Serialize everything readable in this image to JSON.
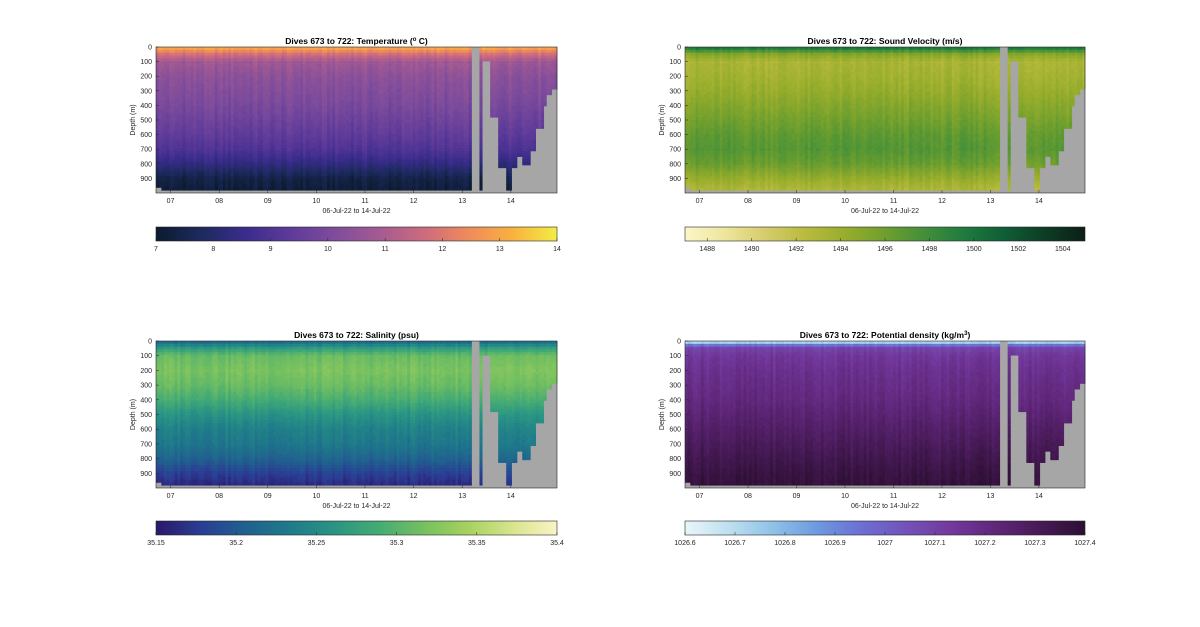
{
  "figure": {
    "panels": [
      {
        "title": "Dives 673 to 722: Temperature",
        "title_units": "(",
        "title_unit_sup": "o",
        "title_unit_rest": " C)",
        "colormap": [
          "#0b1b2e",
          "#1c2a5e",
          "#3b2c8c",
          "#5d3a99",
          "#7e4c9c",
          "#a45a92",
          "#cc6a7f",
          "#ef8a5c",
          "#f9b13f",
          "#f2ee45"
        ],
        "colorbar_ticks": [
          "7",
          "8",
          "9",
          "10",
          "11",
          "12",
          "13",
          "14"
        ]
      },
      {
        "title": "Dives 673 to 722: Sound Velocity (m/s)",
        "title_units": "",
        "title_unit_sup": "",
        "title_unit_rest": "",
        "colormap": [
          "#fcf6c8",
          "#eee59c",
          "#d6cc6c",
          "#b9bb3e",
          "#98ad2c",
          "#6f9f2e",
          "#428f3a",
          "#1e7a3e",
          "#105d35",
          "#0c3d25",
          "#0b1f16"
        ],
        "colorbar_ticks": [
          "1488",
          "1490",
          "1492",
          "1494",
          "1496",
          "1498",
          "1500",
          "1502",
          "1504"
        ]
      },
      {
        "title": "Dives 673 to 722: Salinity (psu)",
        "title_units": "",
        "title_unit_sup": "",
        "title_unit_rest": "",
        "colormap": [
          "#2a1867",
          "#2b3d94",
          "#20608f",
          "#1f7a8a",
          "#2a9484",
          "#45ab74",
          "#75c060",
          "#a7d160",
          "#d8e48e",
          "#faf4c4"
        ],
        "colorbar_ticks": [
          "35.15",
          "35.2",
          "35.25",
          "35.3",
          "35.35",
          "35.4"
        ]
      },
      {
        "title": "Dives 673 to 722: Potential density",
        "title_units": "(kg/m",
        "title_unit_sup": "3",
        "title_unit_rest": ")",
        "colormap": [
          "#e9f6f8",
          "#bddff0",
          "#8fc1e8",
          "#6d98df",
          "#6c6ed2",
          "#7452b8",
          "#72389c",
          "#5f2679",
          "#461a55",
          "#2d0f33"
        ],
        "colorbar_ticks": [
          "1026.6",
          "1026.7",
          "1026.8",
          "1026.9",
          "1027",
          "1027.1",
          "1027.2",
          "1027.3",
          "1027.4"
        ]
      }
    ],
    "y_axis_label": "Depth (m)",
    "x_axis_label": "06-Jul-22 to 14-Jul-22"
  },
  "chart_data": {
    "type": "heatmap",
    "x_tick_labels": [
      "07",
      "08",
      "09",
      "10",
      "11",
      "12",
      "13",
      "14"
    ],
    "x_day_range": [
      6.7,
      14.95
    ],
    "y_tick_labels": [
      "0",
      "100",
      "200",
      "300",
      "400",
      "500",
      "600",
      "700",
      "800",
      "900"
    ],
    "ylim_m": [
      0,
      1000
    ],
    "y_reversed": true,
    "gap_day_range": [
      13.2,
      13.35
    ],
    "panels": [
      {
        "variable": "Temperature",
        "clim": [
          7,
          14
        ],
        "profile_depth_m": [
          0,
          50,
          100,
          200,
          300,
          400,
          500,
          600,
          700,
          800,
          900,
          1000
        ],
        "profile_values": [
          13.2,
          11.8,
          10.8,
          10.4,
          10.2,
          10.0,
          9.7,
          9.4,
          9.0,
          8.3,
          7.4,
          7.1
        ]
      },
      {
        "variable": "Sound Velocity",
        "clim": [
          1487,
          1505
        ],
        "profile_depth_m": [
          0,
          50,
          100,
          200,
          300,
          400,
          500,
          600,
          700,
          800,
          900,
          1000
        ],
        "profile_values": [
          1500.5,
          1495.0,
          1493.2,
          1493.6,
          1494.2,
          1495.0,
          1495.8,
          1496.6,
          1497.0,
          1496.2,
          1494.2,
          1492.6
        ]
      },
      {
        "variable": "Salinity",
        "clim": [
          35.15,
          35.4
        ],
        "profile_depth_m": [
          0,
          50,
          100,
          200,
          300,
          400,
          500,
          600,
          700,
          800,
          900,
          1000
        ],
        "profile_values": [
          35.21,
          35.27,
          35.31,
          35.32,
          35.31,
          35.29,
          35.26,
          35.24,
          35.23,
          35.21,
          35.18,
          35.16
        ]
      },
      {
        "variable": "Potential density",
        "clim": [
          1026.6,
          1027.4
        ],
        "profile_depth_m": [
          0,
          20,
          40,
          100,
          200,
          300,
          400,
          500,
          600,
          700,
          800,
          900,
          1000
        ],
        "profile_values": [
          1026.62,
          1026.85,
          1027.08,
          1027.14,
          1027.17,
          1027.19,
          1027.21,
          1027.24,
          1027.27,
          1027.3,
          1027.33,
          1027.36,
          1027.38
        ]
      }
    ]
  }
}
